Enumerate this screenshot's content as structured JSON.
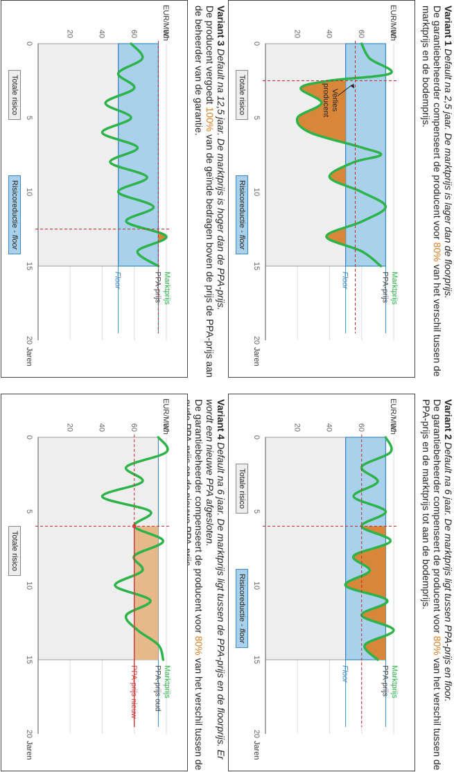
{
  "variants": [
    {
      "caption": {
        "name": "Variant 1",
        "heading": "Default na 2,5 jaar. De marktprijs is lager dan de floorprijs.",
        "body_before": "De garantiebeheerder compenseert de producent voor ",
        "body_pct": "80%",
        "body_after": " van het verschil tussen de marktprijs en de bodemprijs."
      },
      "legend": {
        "total": "Totale risico",
        "reduction": "Risicoreductie - ",
        "reduction_floor": "floor"
      },
      "chart_data": {
        "type": "line",
        "ylabel": "EUR/MWh",
        "xlabel": "Jaren",
        "xlim": [
          0,
          20
        ],
        "ylim": [
          0,
          80
        ],
        "xticks": [
          "0",
          "5",
          "10",
          "15",
          "20"
        ],
        "yticks": [
          "20",
          "40",
          "60",
          "80"
        ],
        "default_year": 2.5,
        "floor": 50,
        "ppa_price": 75,
        "series": [
          {
            "name": "Marktprijs",
            "x": [
              0,
              1,
              2,
              2.5,
              3,
              4,
              5,
              6,
              7,
              7.5,
              8,
              9,
              10,
              11,
              12,
              13,
              14,
              15
            ],
            "y": [
              60,
              65,
              78,
              40,
              22,
              35,
              20,
              28,
              60,
              72,
              55,
              40,
              60,
              75,
              60,
              38,
              60,
              72
            ]
          }
        ],
        "labels": {
          "market": "Marktprijs",
          "ppa": "PPA-prijs",
          "floor": "Floor",
          "annotation": "Verlies producent"
        }
      }
    },
    {
      "caption": {
        "name": "Variant 2",
        "heading": "Default na 6 jaar. De marktprijs ligt tussen PPA-prijs en floor.",
        "body_before": "De garantiebeheerder compenseert de producent voor ",
        "body_pct": "80%",
        "body_after": " van het verschil tussen de PPA-prijs en de marktprijs tot aan de bodemprijs."
      },
      "legend": {
        "total": "Totale risico",
        "reduction": "Risicoreductie - ",
        "reduction_floor": "floor"
      },
      "chart_data": {
        "type": "line",
        "ylabel": "EUR/MWh",
        "xlabel": "Jaren",
        "xlim": [
          0,
          20
        ],
        "ylim": [
          0,
          80
        ],
        "xticks": [
          "0",
          "5",
          "10",
          "15",
          "20"
        ],
        "yticks": [
          "20",
          "40",
          "60",
          "80"
        ],
        "default_year": 6,
        "floor": 50,
        "ppa_price": 75,
        "market_at_default": 60,
        "series": [
          {
            "name": "Marktprijs",
            "x": [
              0,
              1,
              2,
              3,
              4,
              5,
              6,
              7,
              8,
              9,
              10,
              11,
              12,
              13,
              14,
              15
            ],
            "y": [
              75,
              78,
              60,
              70,
              55,
              75,
              60,
              78,
              55,
              65,
              50,
              76,
              60,
              80,
              62,
              70
            ]
          }
        ],
        "labels": {
          "market": "Marktprijs",
          "ppa": "PPA-prijs",
          "floor": "Floor"
        }
      }
    },
    {
      "caption": {
        "name": "Variant 3",
        "heading": "Default na 12,5 jaar. De marktprijs is hoger dan de PPA-prijs.",
        "body_before": "De producent vergoedt ",
        "body_pct": "100%",
        "body_after": " van de geïnde bedragen boven de prijs de PPA-prijs aan de beheerder van de garantie."
      },
      "legend": {
        "total": "Totale risico",
        "reduction": "Risicoreductie - ",
        "reduction_floor": "floor"
      },
      "chart_data": {
        "type": "line",
        "ylabel": "EUR/MWh",
        "xlabel": "Jaren",
        "xlim": [
          0,
          20
        ],
        "ylim": [
          0,
          80
        ],
        "xticks": [
          "0",
          "5",
          "10",
          "15",
          "20"
        ],
        "yticks": [
          "20",
          "40",
          "60",
          "80"
        ],
        "default_year": 12.5,
        "floor": 50,
        "ppa_price": 75,
        "series": [
          {
            "name": "Marktprijs",
            "x": [
              0,
              1,
              2,
              3,
              4,
              5,
              6,
              7,
              8,
              9,
              10,
              11,
              12,
              13,
              14,
              15
            ],
            "y": [
              58,
              65,
              50,
              60,
              42,
              58,
              40,
              62,
              45,
              68,
              50,
              72,
              55,
              80,
              62,
              75
            ]
          }
        ],
        "labels": {
          "market": "Marktprijs",
          "ppa": "PPA-prijs",
          "floor": "Floor"
        }
      }
    },
    {
      "caption": {
        "name": "Variant 4",
        "heading": "Default na 6 jaar. De marktprijs ligt tussen de PPA-prijs en de floorprijs. Er wordt een nieuwe PPA afgesloten.",
        "body_before": "De garantiebeheerder compenseert de producent voor ",
        "body_pct": "80%",
        "body_after": " van het verschil tussen de oude PPA-prijs en de nieuwe PPA-prijs."
      },
      "legend": {
        "total": "Totale risico"
      },
      "chart_data": {
        "type": "line",
        "ylabel": "EUR/MWh",
        "xlabel": "Jaren",
        "xlim": [
          0,
          20
        ],
        "ylim": [
          0,
          80
        ],
        "xticks": [
          "0",
          "5",
          "10",
          "15",
          "20"
        ],
        "yticks": [
          "20",
          "40",
          "60",
          "80"
        ],
        "default_year": 6,
        "ppa_old": 75,
        "ppa_new": 60,
        "series": [
          {
            "name": "Marktprijs",
            "x": [
              0,
              1,
              2,
              3,
              4,
              5,
              6,
              7,
              8,
              9,
              10,
              11,
              12,
              13,
              14,
              15
            ],
            "y": [
              75,
              80,
              55,
              65,
              40,
              70,
              60,
              78,
              60,
              65,
              48,
              70,
              55,
              62,
              75,
              78
            ]
          }
        ],
        "labels": {
          "market": "Marktprijs",
          "ppa_old": "PPA-prijs oud",
          "ppa_new": "PPA-prijs nieuw"
        }
      }
    }
  ],
  "colors": {
    "market": "#2db34a",
    "floor_box": "#a9d1ec",
    "floor_line": "#3b88c3",
    "total": "#eeeeee",
    "loss": "#d8873a",
    "loss_light": "#e7b98a",
    "dashed": "#cc2222",
    "ppa_new": "#d73b3b",
    "axis": "#555555",
    "tick": "#666666",
    "highlight": "#e07b1f"
  }
}
